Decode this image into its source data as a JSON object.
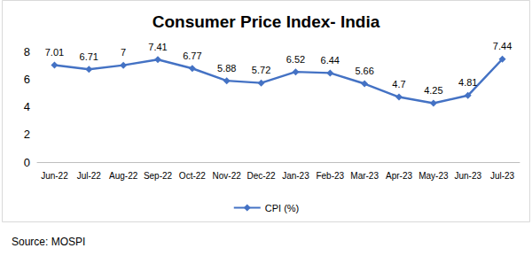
{
  "chart_data": {
    "type": "line",
    "title": "Consumer Price Index- India",
    "annotations": [
      "Source: MOSPI"
    ],
    "categories": [
      "Jun-22",
      "Jul-22",
      "Aug-22",
      "Sep-22",
      "Oct-22",
      "Nov-22",
      "Dec-22",
      "Jan-23",
      "Feb-23",
      "Mar-23",
      "Apr-23",
      "May-23",
      "Jun-23",
      "Jul-23"
    ],
    "series": [
      {
        "name": "CPI (%)",
        "color": "#4472c4",
        "marker": "diamond",
        "line_style": "solid",
        "values": [
          7.01,
          6.71,
          7,
          7.41,
          6.77,
          5.88,
          5.72,
          6.52,
          6.44,
          5.66,
          4.7,
          4.25,
          4.81,
          7.44
        ]
      }
    ],
    "ylim": [
      0,
      8
    ],
    "yticks": [
      0,
      2,
      4,
      6,
      8
    ],
    "grid": false,
    "legend": "bottom",
    "data_labels": true
  }
}
